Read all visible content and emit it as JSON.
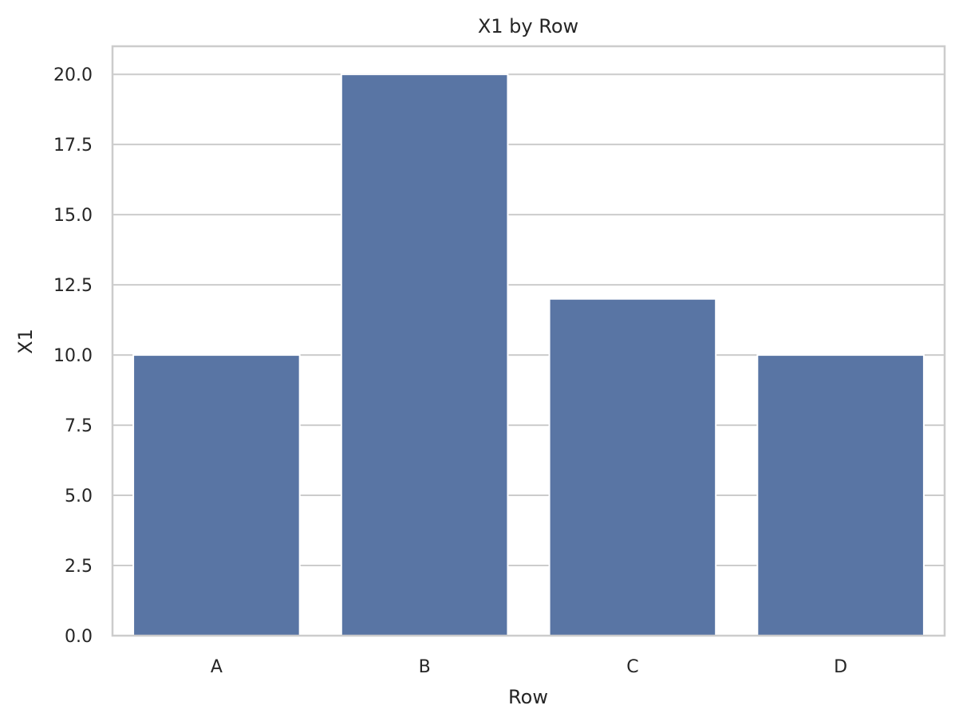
{
  "chart_data": {
    "type": "bar",
    "title": "X1 by Row",
    "xlabel": "Row",
    "ylabel": "X1",
    "categories": [
      "A",
      "B",
      "C",
      "D"
    ],
    "values": [
      10,
      20,
      12,
      10
    ],
    "ylim": [
      0,
      21
    ],
    "yticks": [
      0,
      2.5,
      5,
      7.5,
      10,
      12.5,
      15,
      17.5,
      20
    ],
    "ytick_labels": [
      "0.0",
      "2.5",
      "5.0",
      "7.5",
      "10.0",
      "12.5",
      "15.0",
      "17.5",
      "20.0"
    ],
    "grid": true,
    "legend": "none",
    "bar_color": "#5975a4",
    "grid_color": "#cccccc",
    "spine_color": "#cccccc"
  }
}
